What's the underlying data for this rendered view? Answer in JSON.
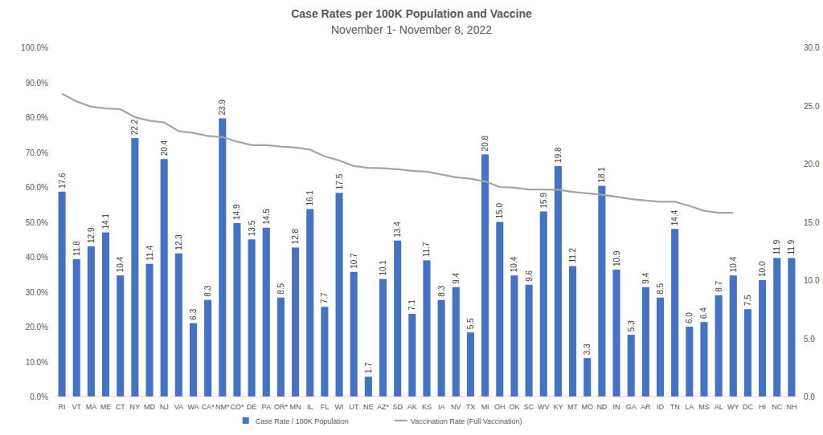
{
  "chart_data": {
    "type": "bar",
    "title": "Case Rates per 100K Population and Vaccine",
    "subtitle": "November 1- November 8, 2022",
    "categories": [
      "RI",
      "VT",
      "MA",
      "ME",
      "CT",
      "NY",
      "MD",
      "NJ",
      "VA",
      "WA",
      "CA*",
      "NM*",
      "CO*",
      "DE",
      "PA",
      "OR*",
      "MN",
      "IL",
      "FL",
      "WI",
      "UT",
      "NE",
      "AZ*",
      "SD",
      "AK",
      "KS",
      "IA",
      "NV",
      "TX",
      "MI",
      "OH",
      "OK",
      "SC",
      "WV",
      "KY",
      "MT",
      "MO",
      "ND",
      "IN",
      "GA",
      "AR",
      "ID",
      "TN",
      "LA",
      "MS",
      "AL",
      "WY",
      "DC",
      "HI",
      "NC",
      "NH"
    ],
    "series": [
      {
        "name": "Case Rate / 100K Population",
        "type": "bar",
        "color": "#4472c4",
        "axis": "y2",
        "values": [
          17.6,
          11.8,
          12.9,
          14.1,
          10.4,
          22.2,
          11.4,
          20.4,
          12.3,
          6.3,
          8.3,
          23.9,
          14.9,
          13.5,
          14.5,
          8.5,
          12.8,
          16.1,
          7.7,
          17.5,
          10.7,
          1.7,
          10.1,
          13.4,
          7.1,
          11.7,
          8.3,
          9.4,
          5.5,
          20.8,
          15.0,
          10.4,
          9.6,
          15.9,
          19.8,
          11.2,
          3.3,
          18.1,
          10.9,
          5.3,
          9.4,
          8.5,
          14.4,
          6.0,
          6.4,
          8.7,
          10.4,
          7.5,
          10.0,
          11.9,
          11.9
        ],
        "value_labels": [
          "17.6",
          "11.8",
          "12.9",
          "14.1",
          "10.4",
          "22.2",
          "11.4",
          "20.4",
          "12.3",
          "6.3",
          "8.3",
          "23.9",
          "14.9",
          "13.5",
          "14.5",
          "8.5",
          "12.8",
          "16.1",
          "7.7",
          "17.5",
          "10.7",
          "1.7",
          "10.1",
          "13.4",
          "7.1",
          "11.7",
          "8.3",
          "9.4",
          "5.5",
          "20.8",
          "15.0",
          "10.4",
          "9.6",
          "15.9",
          "19.8",
          "11.2",
          "3.3",
          "18.1",
          "10.9",
          "5.3",
          "9.4",
          "8.5",
          "14.4",
          "6.0",
          "6.4",
          "8.7",
          "10.4",
          "7.5",
          "10.0",
          "11.9",
          "11.9"
        ]
      },
      {
        "name": "Vaccination Rate (Full Vaccination)",
        "type": "line",
        "color": "#a5a5a5",
        "axis": "y",
        "values": [
          86.7,
          84.5,
          83.0,
          82.5,
          82.3,
          80.0,
          79.0,
          78.5,
          76.0,
          75.5,
          74.6,
          74.3,
          73.0,
          72.0,
          72.0,
          71.6,
          71.3,
          70.7,
          68.8,
          67.6,
          66.0,
          65.5,
          65.4,
          65.1,
          64.6,
          64.4,
          63.6,
          62.8,
          62.4,
          61.6,
          60.0,
          59.8,
          59.3,
          59.3,
          59.2,
          58.6,
          58.2,
          57.8,
          57.2,
          56.6,
          56.1,
          55.8,
          55.8,
          54.6,
          53.2,
          52.6,
          52.6,
          null,
          null,
          null,
          null
        ]
      }
    ],
    "ylim": [
      0,
      100
    ],
    "yticks": [
      {
        "value": 0,
        "label": "0.0%"
      },
      {
        "value": 10,
        "label": "10.0%"
      },
      {
        "value": 20,
        "label": "20.0%"
      },
      {
        "value": 30,
        "label": "30.0%"
      },
      {
        "value": 40,
        "label": "40.0%"
      },
      {
        "value": 50,
        "label": "50.0%"
      },
      {
        "value": 60,
        "label": "60.0%"
      },
      {
        "value": 70,
        "label": "70.0%"
      },
      {
        "value": 80,
        "label": "80.0%"
      },
      {
        "value": 90,
        "label": "90.0%"
      },
      {
        "value": 100,
        "label": "100.0%"
      }
    ],
    "y2lim": [
      0,
      30
    ],
    "y2ticks": [
      {
        "value": 0,
        "label": "0.0"
      },
      {
        "value": 5,
        "label": "5.0"
      },
      {
        "value": 10,
        "label": "10.0"
      },
      {
        "value": 15,
        "label": "15.0"
      },
      {
        "value": 20,
        "label": "20.0"
      },
      {
        "value": 25,
        "label": "25.0"
      },
      {
        "value": 30,
        "label": "30.0"
      }
    ],
    "grid": false,
    "legend": "bottom",
    "data_labels": true
  }
}
